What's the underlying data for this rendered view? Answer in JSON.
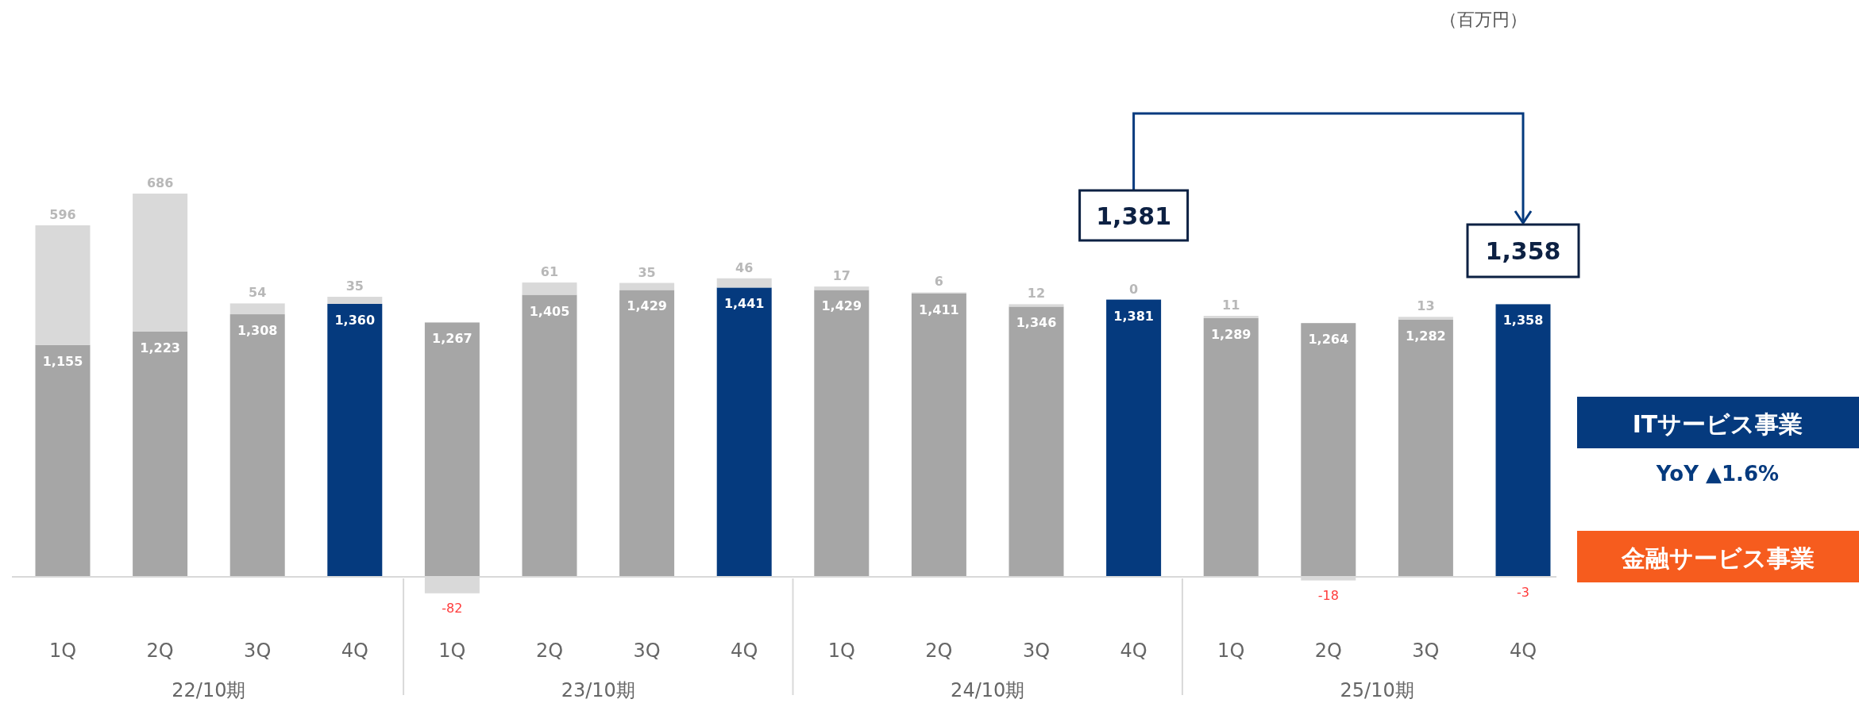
{
  "chart_data": {
    "type": "bar",
    "stacked": true,
    "categories": [
      "1Q",
      "2Q",
      "3Q",
      "4Q",
      "1Q",
      "2Q",
      "3Q",
      "4Q",
      "1Q",
      "2Q",
      "3Q",
      "4Q",
      "1Q",
      "2Q",
      "3Q",
      "4Q"
    ],
    "series": [
      {
        "value_labels": [
          "1,155",
          "1,223",
          "1,308",
          "1,360",
          "1,267",
          "1,405",
          "1,429",
          "1,441",
          "1,429",
          "1,411",
          "1,346",
          "1,381",
          "1,289",
          "1,264",
          "1,282",
          "1,358"
        ],
        "colors": [
          "#a6a6a6",
          "#a6a6a6",
          "#a6a6a6",
          "#053a7e",
          "#a6a6a6",
          "#a6a6a6",
          "#a6a6a6",
          "#053a7e",
          "#a6a6a6",
          "#a6a6a6",
          "#a6a6a6",
          "#053a7e",
          "#a6a6a6",
          "#a6a6a6",
          "#a6a6a6",
          "#053a7e"
        ],
        "values": [
          1155,
          1223,
          1308,
          1360,
          1267,
          1405,
          1429,
          1441,
          1429,
          1411,
          1346,
          1381,
          1289,
          1264,
          1282,
          1358
        ]
      },
      {
        "color": "#d9d9d9",
        "value_labels": [
          "596",
          "686",
          "54",
          "35",
          "-82",
          "61",
          "35",
          "46",
          "17",
          "6",
          "12",
          "0",
          "11",
          "-18",
          "13",
          "-3"
        ],
        "values": [
          596,
          686,
          54,
          35,
          -82,
          61,
          35,
          46,
          17,
          6,
          12,
          0,
          11,
          -18,
          13,
          -3
        ]
      }
    ],
    "annotations": [
      "22/10期",
      "23/10期",
      "24/10期",
      "25/10期",
      "（百万円）",
      "1,381",
      "1,358",
      "ITサービス事業",
      "YoY ▲1.6%",
      "金融サービス事業"
    ]
  }
}
